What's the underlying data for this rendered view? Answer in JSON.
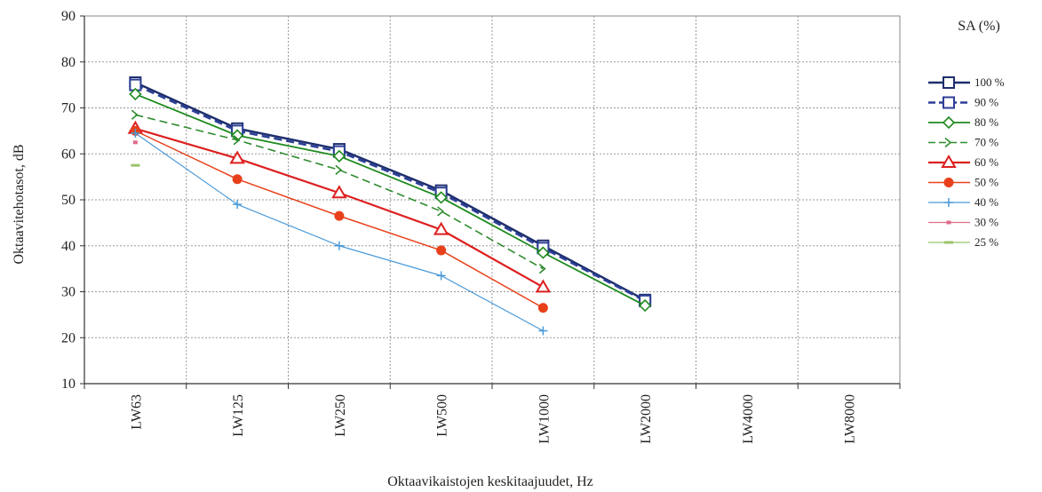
{
  "chart_data": {
    "type": "line",
    "categories": [
      "LW63",
      "LW125",
      "LW250",
      "LW500",
      "LW1000",
      "LW2000",
      "LW4000",
      "LW8000"
    ],
    "xlabel": "Oktaavikaistojen keskitaajuudet, Hz",
    "ylabel": "Oktaavitehotasot, dB",
    "ylim": [
      10,
      90
    ],
    "yticks": [
      10,
      20,
      30,
      40,
      50,
      60,
      70,
      80,
      90
    ],
    "grid": true,
    "legend_title": "SA (%)",
    "legend_position": "right",
    "series": [
      {
        "name": "100 %",
        "color": "#1f2f6e",
        "dash": "solid",
        "marker": "square",
        "values": [
          75.5,
          65.5,
          61.0,
          52.0,
          40.0,
          28.2,
          null,
          null
        ]
      },
      {
        "name": "90 %",
        "color": "#2c3f96",
        "dash": "dashed",
        "marker": "square",
        "values": [
          75.0,
          65.0,
          60.5,
          51.5,
          39.5,
          28.0,
          null,
          null
        ]
      },
      {
        "name": "80 %",
        "color": "#1e8a1e",
        "dash": "solid",
        "marker": "diamond",
        "values": [
          73.0,
          64.0,
          59.5,
          50.5,
          38.5,
          27.0,
          null,
          null
        ]
      },
      {
        "name": "70 %",
        "color": "#2e8b2e",
        "dash": "dashed",
        "marker": "chevron",
        "values": [
          68.5,
          63.0,
          56.5,
          47.5,
          35.0,
          null,
          null,
          null
        ]
      },
      {
        "name": "60 %",
        "color": "#dd1f1f",
        "dash": "solid",
        "marker": "triangle",
        "values": [
          65.5,
          59.0,
          51.5,
          43.5,
          31.0,
          null,
          null,
          null
        ]
      },
      {
        "name": "50 %",
        "color": "#e8401a",
        "dash": "solid",
        "marker": "circle",
        "values": [
          65.0,
          54.5,
          46.5,
          39.0,
          26.5,
          null,
          null,
          null
        ]
      },
      {
        "name": "40 %",
        "color": "#4a9ad9",
        "dash": "solid",
        "marker": "plus",
        "values": [
          64.5,
          49.0,
          40.0,
          33.5,
          21.5,
          null,
          null,
          null
        ]
      },
      {
        "name": "30 %",
        "color": "#e06a8a",
        "dash": "solid",
        "marker": "dot",
        "values": [
          62.5,
          null,
          null,
          null,
          null,
          null,
          null,
          null
        ]
      },
      {
        "name": "25 %",
        "color": "#9bc36a",
        "dash": "solid",
        "marker": "dash",
        "values": [
          57.5,
          null,
          null,
          null,
          null,
          null,
          null,
          null
        ]
      }
    ]
  }
}
